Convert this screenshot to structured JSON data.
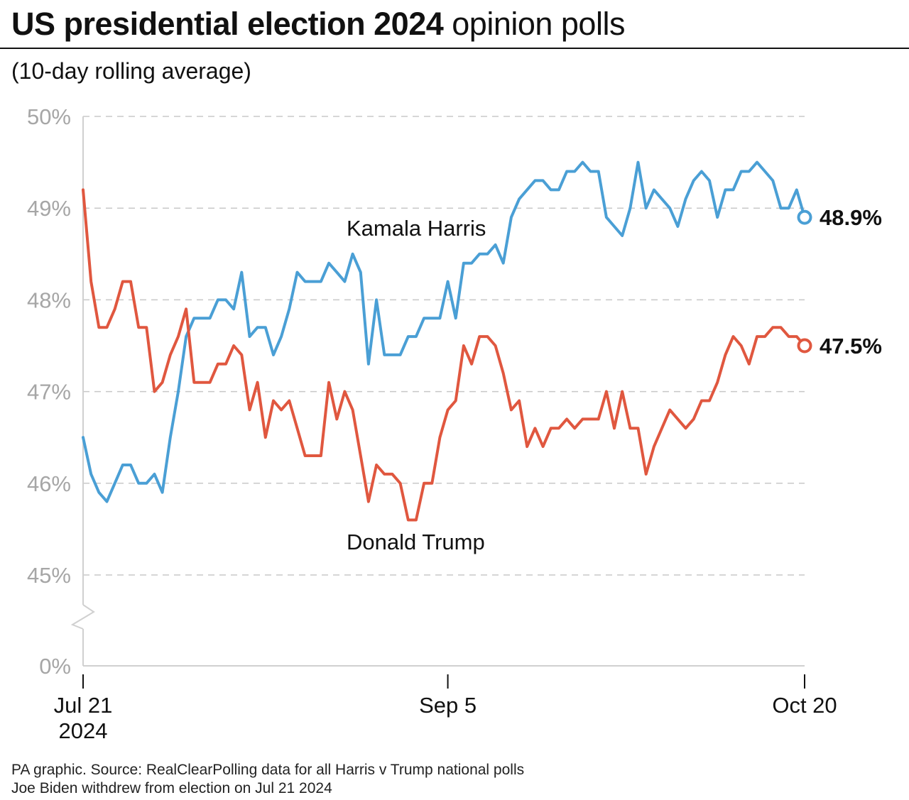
{
  "header": {
    "title_bold": "US presidential election 2024",
    "title_light": "opinion polls",
    "subtitle": "(10-day rolling average)"
  },
  "footer": {
    "source": "PA graphic. Source: RealClearPolling data for all Harris v Trump national polls",
    "note": "Joe Biden withdrew from election on Jul 21 2024"
  },
  "chart_data": {
    "type": "line",
    "title": "US presidential election 2024 opinion polls",
    "subtitle": "(10-day rolling average)",
    "xlabel": "",
    "ylabel": "",
    "ylim": [
      45,
      50
    ],
    "axis_break": true,
    "y_ticks": [
      {
        "value": 50,
        "label": "50%"
      },
      {
        "value": 49,
        "label": "49%"
      },
      {
        "value": 48,
        "label": "48%"
      },
      {
        "value": 47,
        "label": "47%"
      },
      {
        "value": 46,
        "label": "46%"
      },
      {
        "value": 45,
        "label": "45%"
      }
    ],
    "y_baseline_label": "0%",
    "x_ticks": [
      {
        "day": 0,
        "label": "Jul 21",
        "sublabel": "2024"
      },
      {
        "day": 46,
        "label": "Sep 5",
        "sublabel": ""
      },
      {
        "day": 91,
        "label": "Oct 20",
        "sublabel": ""
      }
    ],
    "grid": true,
    "colors": {
      "harris": "#4a9fd5",
      "trump": "#e0573f",
      "grid": "#c8c8c8",
      "axis": "#d0d0d0",
      "tick_text": "#a6a6a6"
    },
    "series": [
      {
        "name": "Kamala Harris",
        "key": "harris",
        "end_label": "48.9%",
        "points": [
          [
            0,
            46.5
          ],
          [
            1,
            46.1
          ],
          [
            2,
            45.9
          ],
          [
            3,
            45.8
          ],
          [
            4,
            46.0
          ],
          [
            5,
            46.2
          ],
          [
            6,
            46.2
          ],
          [
            7,
            46.0
          ],
          [
            8,
            46.0
          ],
          [
            9,
            46.1
          ],
          [
            10,
            45.9
          ],
          [
            11,
            46.5
          ],
          [
            12,
            47.0
          ],
          [
            13,
            47.6
          ],
          [
            14,
            47.8
          ],
          [
            15,
            47.8
          ],
          [
            16,
            47.8
          ],
          [
            17,
            48.0
          ],
          [
            18,
            48.0
          ],
          [
            19,
            47.9
          ],
          [
            20,
            48.3
          ],
          [
            21,
            47.6
          ],
          [
            22,
            47.7
          ],
          [
            23,
            47.7
          ],
          [
            24,
            47.4
          ],
          [
            25,
            47.6
          ],
          [
            26,
            47.9
          ],
          [
            27,
            48.3
          ],
          [
            28,
            48.2
          ],
          [
            29,
            48.2
          ],
          [
            30,
            48.2
          ],
          [
            31,
            48.4
          ],
          [
            32,
            48.3
          ],
          [
            33,
            48.2
          ],
          [
            34,
            48.5
          ],
          [
            35,
            48.3
          ],
          [
            36,
            47.3
          ],
          [
            37,
            48.0
          ],
          [
            38,
            47.4
          ],
          [
            39,
            47.4
          ],
          [
            40,
            47.4
          ],
          [
            41,
            47.6
          ],
          [
            42,
            47.6
          ],
          [
            43,
            47.8
          ],
          [
            44,
            47.8
          ],
          [
            45,
            47.8
          ],
          [
            46,
            48.2
          ],
          [
            47,
            47.8
          ],
          [
            48,
            48.4
          ],
          [
            49,
            48.4
          ],
          [
            50,
            48.5
          ],
          [
            51,
            48.5
          ],
          [
            52,
            48.6
          ],
          [
            53,
            48.4
          ],
          [
            54,
            48.9
          ],
          [
            55,
            49.1
          ],
          [
            56,
            49.2
          ],
          [
            57,
            49.3
          ],
          [
            58,
            49.3
          ],
          [
            59,
            49.2
          ],
          [
            60,
            49.2
          ],
          [
            61,
            49.4
          ],
          [
            62,
            49.4
          ],
          [
            63,
            49.5
          ],
          [
            64,
            49.4
          ],
          [
            65,
            49.4
          ],
          [
            66,
            48.9
          ],
          [
            67,
            48.8
          ],
          [
            68,
            48.7
          ],
          [
            69,
            49.0
          ],
          [
            70,
            49.5
          ],
          [
            71,
            49.0
          ],
          [
            72,
            49.2
          ],
          [
            73,
            49.1
          ],
          [
            74,
            49.0
          ],
          [
            75,
            48.8
          ],
          [
            76,
            49.1
          ],
          [
            77,
            49.3
          ],
          [
            78,
            49.4
          ],
          [
            79,
            49.3
          ],
          [
            80,
            48.9
          ],
          [
            81,
            49.2
          ],
          [
            82,
            49.2
          ],
          [
            83,
            49.4
          ],
          [
            84,
            49.4
          ],
          [
            85,
            49.5
          ],
          [
            86,
            49.4
          ],
          [
            87,
            49.3
          ],
          [
            88,
            49.0
          ],
          [
            89,
            49.0
          ],
          [
            90,
            49.2
          ],
          [
            91,
            48.9
          ]
        ]
      },
      {
        "name": "Donald Trump",
        "key": "trump",
        "end_label": "47.5%",
        "points": [
          [
            0,
            49.2
          ],
          [
            1,
            48.2
          ],
          [
            2,
            47.7
          ],
          [
            3,
            47.7
          ],
          [
            4,
            47.9
          ],
          [
            5,
            48.2
          ],
          [
            6,
            48.2
          ],
          [
            7,
            47.7
          ],
          [
            8,
            47.7
          ],
          [
            9,
            47.0
          ],
          [
            10,
            47.1
          ],
          [
            11,
            47.4
          ],
          [
            12,
            47.6
          ],
          [
            13,
            47.9
          ],
          [
            14,
            47.1
          ],
          [
            15,
            47.1
          ],
          [
            16,
            47.1
          ],
          [
            17,
            47.3
          ],
          [
            18,
            47.3
          ],
          [
            19,
            47.5
          ],
          [
            20,
            47.4
          ],
          [
            21,
            46.8
          ],
          [
            22,
            47.1
          ],
          [
            23,
            46.5
          ],
          [
            24,
            46.9
          ],
          [
            25,
            46.8
          ],
          [
            26,
            46.9
          ],
          [
            27,
            46.6
          ],
          [
            28,
            46.3
          ],
          [
            29,
            46.3
          ],
          [
            30,
            46.3
          ],
          [
            31,
            47.1
          ],
          [
            32,
            46.7
          ],
          [
            33,
            47.0
          ],
          [
            34,
            46.8
          ],
          [
            35,
            46.3
          ],
          [
            36,
            45.8
          ],
          [
            37,
            46.2
          ],
          [
            38,
            46.1
          ],
          [
            39,
            46.1
          ],
          [
            40,
            46.0
          ],
          [
            41,
            45.6
          ],
          [
            42,
            45.6
          ],
          [
            43,
            46.0
          ],
          [
            44,
            46.0
          ],
          [
            45,
            46.5
          ],
          [
            46,
            46.8
          ],
          [
            47,
            46.9
          ],
          [
            48,
            47.5
          ],
          [
            49,
            47.3
          ],
          [
            50,
            47.6
          ],
          [
            51,
            47.6
          ],
          [
            52,
            47.5
          ],
          [
            53,
            47.2
          ],
          [
            54,
            46.8
          ],
          [
            55,
            46.9
          ],
          [
            56,
            46.4
          ],
          [
            57,
            46.6
          ],
          [
            58,
            46.4
          ],
          [
            59,
            46.6
          ],
          [
            60,
            46.6
          ],
          [
            61,
            46.7
          ],
          [
            62,
            46.6
          ],
          [
            63,
            46.7
          ],
          [
            64,
            46.7
          ],
          [
            65,
            46.7
          ],
          [
            66,
            47.0
          ],
          [
            67,
            46.6
          ],
          [
            68,
            47.0
          ],
          [
            69,
            46.6
          ],
          [
            70,
            46.6
          ],
          [
            71,
            46.1
          ],
          [
            72,
            46.4
          ],
          [
            73,
            46.6
          ],
          [
            74,
            46.8
          ],
          [
            75,
            46.7
          ],
          [
            76,
            46.6
          ],
          [
            77,
            46.7
          ],
          [
            78,
            46.9
          ],
          [
            79,
            46.9
          ],
          [
            80,
            47.1
          ],
          [
            81,
            47.4
          ],
          [
            82,
            47.6
          ],
          [
            83,
            47.5
          ],
          [
            84,
            47.3
          ],
          [
            85,
            47.6
          ],
          [
            86,
            47.6
          ],
          [
            87,
            47.7
          ],
          [
            88,
            47.7
          ],
          [
            89,
            47.6
          ],
          [
            90,
            47.6
          ],
          [
            91,
            47.5
          ]
        ]
      }
    ]
  }
}
